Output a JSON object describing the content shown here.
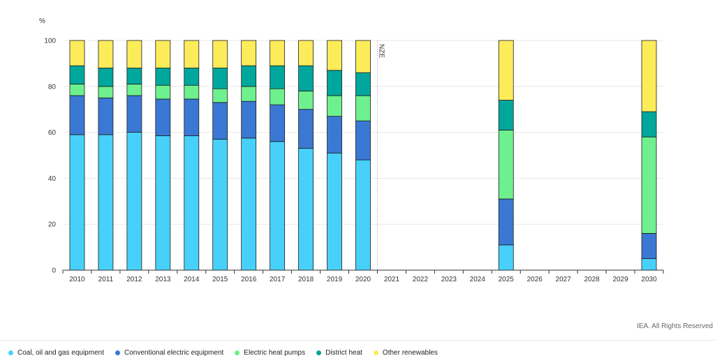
{
  "chart_data": {
    "type": "bar",
    "stacked": true,
    "ylabel": "%",
    "ylim": [
      0,
      100
    ],
    "yticks": [
      0,
      20,
      40,
      60,
      80,
      100
    ],
    "grid": true,
    "legend_position": "bottom-left",
    "categories": [
      "2010",
      "2011",
      "2012",
      "2013",
      "2014",
      "2015",
      "2016",
      "2017",
      "2018",
      "2019",
      "2020",
      "2021",
      "2022",
      "2023",
      "2024",
      "2025",
      "2026",
      "2027",
      "2028",
      "2029",
      "2030"
    ],
    "annotations": [
      {
        "label": "NZE",
        "at": "2021",
        "style": "dotted-vertical-line"
      }
    ],
    "series": [
      {
        "name": "Coal, oil and gas equipment",
        "color": "#47d1fa",
        "values": [
          59,
          59,
          60,
          58.5,
          58.5,
          57,
          57.5,
          56,
          53,
          51,
          48,
          null,
          null,
          null,
          null,
          11,
          null,
          null,
          null,
          null,
          5
        ]
      },
      {
        "name": "Conventional electric equipment",
        "color": "#3a78d4",
        "values": [
          17,
          16,
          16,
          16,
          16,
          16,
          16,
          16,
          17,
          16,
          17,
          null,
          null,
          null,
          null,
          20,
          null,
          null,
          null,
          null,
          11
        ]
      },
      {
        "name": "Electric heat pumps",
        "color": "#6ef08f",
        "values": [
          5,
          5,
          5,
          6,
          6,
          6,
          6.5,
          7,
          8,
          9,
          11,
          null,
          null,
          null,
          null,
          30,
          null,
          null,
          null,
          null,
          42
        ]
      },
      {
        "name": "District heat",
        "color": "#00a79d",
        "values": [
          8,
          8,
          7,
          7.5,
          7.5,
          9,
          9,
          10,
          11,
          11,
          10,
          null,
          null,
          null,
          null,
          13,
          null,
          null,
          null,
          null,
          11
        ]
      },
      {
        "name": "Other renewables",
        "color": "#fdec5a",
        "values": [
          11,
          12,
          12,
          12,
          12,
          12,
          11,
          11,
          11,
          13,
          14,
          null,
          null,
          null,
          null,
          26,
          null,
          null,
          null,
          null,
          31
        ]
      }
    ]
  },
  "credit": "IEA. All Rights Reserved"
}
